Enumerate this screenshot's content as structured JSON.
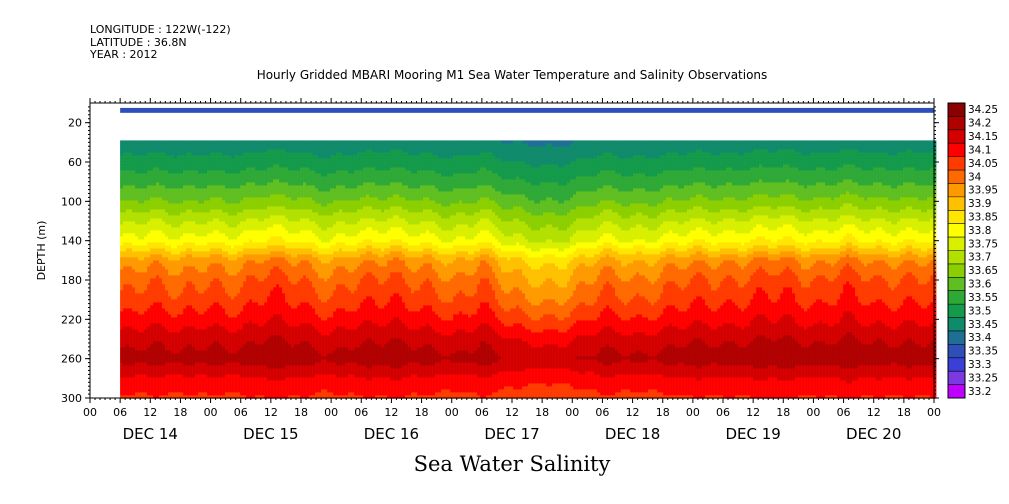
{
  "header": {
    "longitude": "LONGITUDE : 122W(-122)",
    "latitude": "LATITUDE : 36.8N",
    "year": "YEAR : 2012"
  },
  "chart_data": {
    "type": "heatmap",
    "title": "Hourly Gridded MBARI Mooring M1 Sea Water Temperature and Salinity Observations",
    "variable_label": "Sea Water Salinity",
    "ylabel": "DEPTH (m)",
    "ylim": [
      0,
      300
    ],
    "y_inverted": true,
    "y_ticks": [
      20,
      60,
      100,
      140,
      180,
      220,
      260,
      300
    ],
    "x_hour_ticks": [
      "00",
      "06",
      "12",
      "18",
      "00",
      "06",
      "12",
      "18",
      "00",
      "06",
      "12",
      "18",
      "00",
      "06",
      "12",
      "18",
      "00",
      "06",
      "12",
      "18",
      "00",
      "06",
      "12",
      "18",
      "00",
      "06",
      "12",
      "18",
      "00"
    ],
    "x_day_labels": [
      "DEC 14",
      "DEC 15",
      "DEC 16",
      "DEC 17",
      "DEC 18",
      "DEC 19",
      "DEC 20"
    ],
    "x_range_hours": [
      0,
      168
    ],
    "data_start_hour": 6,
    "colorbar_levels": [
      "34.25",
      "34.2",
      "34.15",
      "34.1",
      "34.05",
      "34",
      "33.95",
      "33.9",
      "33.85",
      "33.8",
      "33.75",
      "33.7",
      "33.65",
      "33.6",
      "33.55",
      "33.5",
      "33.45",
      "33.4",
      "33.35",
      "33.3",
      "33.25",
      "33.2"
    ],
    "colorbar_colors": [
      "#8b0000",
      "#b00000",
      "#d40000",
      "#ff0000",
      "#ff3b00",
      "#ff6a00",
      "#ff9900",
      "#ffc000",
      "#ffe600",
      "#ffff00",
      "#d8f000",
      "#b2e000",
      "#8ccf00",
      "#5fbf20",
      "#2ea836",
      "#139a4a",
      "#0f8a6a",
      "#1f6e96",
      "#2f4fb8",
      "#3a3fd8",
      "#7a3ae0",
      "#c000ff"
    ],
    "surface_band": {
      "depth_top": 5,
      "depth_bottom": 10,
      "value": 33.36
    },
    "gap_depth": [
      10,
      38
    ],
    "profile_depths": [
      38,
      60,
      80,
      100,
      120,
      140,
      160,
      180,
      200,
      220,
      240,
      260,
      280,
      300
    ],
    "profile_base": [
      33.46,
      33.52,
      33.58,
      33.65,
      33.74,
      33.82,
      33.97,
      34.03,
      34.07,
      34.12,
      34.18,
      34.22,
      34.14,
      34.09
    ],
    "day_anomaly_hours": [
      6,
      12,
      18,
      24,
      30,
      36,
      42,
      48,
      54,
      60,
      66,
      72,
      78,
      84,
      90,
      96,
      102,
      108,
      114,
      120,
      126,
      132,
      138,
      144,
      150,
      156,
      162,
      168
    ],
    "day_anomaly_values": [
      0.0,
      0.02,
      -0.02,
      0.02,
      0.0,
      0.03,
      0.03,
      -0.02,
      0.01,
      0.04,
      0.0,
      -0.03,
      0.03,
      -0.06,
      -0.08,
      -0.05,
      -0.01,
      -0.02,
      0.0,
      0.01,
      0.02,
      0.03,
      0.03,
      0.02,
      0.04,
      0.01,
      0.03,
      0.02
    ]
  }
}
